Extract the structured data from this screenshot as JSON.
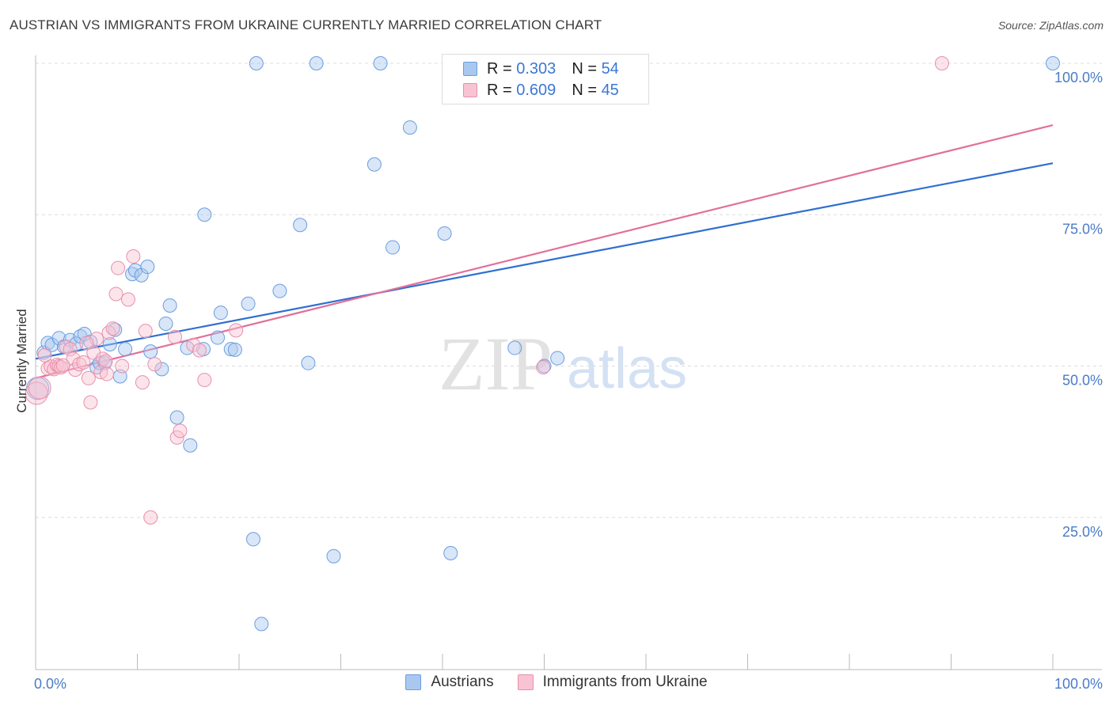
{
  "title": "AUSTRIAN VS IMMIGRANTS FROM UKRAINE CURRENTLY MARRIED CORRELATION CHART",
  "source": "Source: ZipAtlas.com",
  "watermark": {
    "zip": "ZIP",
    "atlas": "atlas"
  },
  "legend": {
    "r_label": "R =",
    "n_label": "N =",
    "rows": [
      {
        "r": "0.303",
        "n": "54",
        "color": "#a9c8f0",
        "border": "#6b9de0"
      },
      {
        "r": "0.609",
        "n": "45",
        "color": "#f8c3d3",
        "border": "#e890ab"
      }
    ]
  },
  "bottom_legend": [
    {
      "label": "Austrians",
      "color": "#a9c8f0",
      "border": "#6b9de0"
    },
    {
      "label": "Immigrants from Ukraine",
      "color": "#f8c3d3",
      "border": "#e890ab"
    }
  ],
  "chart_data": {
    "type": "scatter",
    "title": "AUSTRIAN VS IMMIGRANTS FROM UKRAINE CURRENTLY MARRIED CORRELATION CHART",
    "xlabel": "",
    "ylabel": "Currently Married",
    "xlim": [
      0,
      100
    ],
    "ylim": [
      0,
      102
    ],
    "x_tick_labels": [
      "0.0%",
      "100.0%"
    ],
    "y_ticks": [
      25,
      50,
      75,
      100
    ],
    "y_tick_labels": [
      "25.0%",
      "50.0%",
      "75.0%",
      "100.0%"
    ],
    "grid": true,
    "legend_position": "top-center",
    "series": [
      {
        "name": "Austrians",
        "color": "#6b9de0",
        "fill": "rgba(169,200,240,0.45)",
        "trend": {
          "x": [
            0,
            100
          ],
          "y": [
            51.2,
            83.5
          ],
          "color": "#2f6fd1"
        },
        "points": [
          [
            0.2,
            46.3
          ],
          [
            0.8,
            52.2
          ],
          [
            1.2,
            53.8
          ],
          [
            1.6,
            53.5
          ],
          [
            2.3,
            54.6
          ],
          [
            2.8,
            53.2
          ],
          [
            3.4,
            54.3
          ],
          [
            4.0,
            53.7
          ],
          [
            4.4,
            54.9
          ],
          [
            4.8,
            55.3
          ],
          [
            5.4,
            54.0
          ],
          [
            6.0,
            49.8
          ],
          [
            6.3,
            50.5
          ],
          [
            6.8,
            50.5
          ],
          [
            7.3,
            53.6
          ],
          [
            7.8,
            56.0
          ],
          [
            8.3,
            48.3
          ],
          [
            8.8,
            52.8
          ],
          [
            9.5,
            65.2
          ],
          [
            9.8,
            65.8
          ],
          [
            10.4,
            65.0
          ],
          [
            11.0,
            66.4
          ],
          [
            11.3,
            52.4
          ],
          [
            12.4,
            49.5
          ],
          [
            12.8,
            57.0
          ],
          [
            13.2,
            60.0
          ],
          [
            13.9,
            41.5
          ],
          [
            14.9,
            53.0
          ],
          [
            15.2,
            36.9
          ],
          [
            16.5,
            52.8
          ],
          [
            16.6,
            75.0
          ],
          [
            17.9,
            54.7
          ],
          [
            18.2,
            58.8
          ],
          [
            19.2,
            52.8
          ],
          [
            19.6,
            52.7
          ],
          [
            20.9,
            60.3
          ],
          [
            21.4,
            21.4
          ],
          [
            21.7,
            100.0
          ],
          [
            22.2,
            7.4
          ],
          [
            24.0,
            62.4
          ],
          [
            26.0,
            73.3
          ],
          [
            26.8,
            50.5
          ],
          [
            27.6,
            100.0
          ],
          [
            29.3,
            18.6
          ],
          [
            33.3,
            83.3
          ],
          [
            33.9,
            100.0
          ],
          [
            35.1,
            69.6
          ],
          [
            36.8,
            89.4
          ],
          [
            40.2,
            71.9
          ],
          [
            40.8,
            19.1
          ],
          [
            47.1,
            53.0
          ],
          [
            50.0,
            50.0
          ],
          [
            51.3,
            51.3
          ],
          [
            100.0,
            100.0
          ]
        ]
      },
      {
        "name": "Immigrants from Ukraine",
        "color": "#e890ab",
        "fill": "rgba(248,195,211,0.45)",
        "trend": {
          "x": [
            0,
            100
          ],
          "y": [
            48.0,
            89.8
          ],
          "color": "#e2709a"
        },
        "points": [
          [
            0.1,
            45.5
          ],
          [
            0.4,
            46.4
          ],
          [
            0.9,
            51.8
          ],
          [
            1.2,
            49.6
          ],
          [
            1.5,
            49.9
          ],
          [
            1.8,
            49.5
          ],
          [
            2.1,
            50.2
          ],
          [
            2.3,
            50.0
          ],
          [
            2.5,
            49.8
          ],
          [
            2.7,
            50.1
          ],
          [
            3.0,
            53.2
          ],
          [
            3.4,
            52.8
          ],
          [
            3.7,
            51.2
          ],
          [
            3.9,
            49.4
          ],
          [
            4.3,
            50.3
          ],
          [
            4.7,
            50.6
          ],
          [
            5.2,
            48.0
          ],
          [
            5.4,
            44.0
          ],
          [
            5.7,
            52.2
          ],
          [
            6.0,
            54.5
          ],
          [
            6.4,
            49.0
          ],
          [
            6.6,
            51.2
          ],
          [
            6.9,
            50.8
          ],
          [
            7.2,
            55.5
          ],
          [
            7.6,
            56.2
          ],
          [
            7.9,
            61.9
          ],
          [
            8.1,
            66.2
          ],
          [
            8.5,
            50.0
          ],
          [
            9.1,
            61.0
          ],
          [
            9.6,
            68.1
          ],
          [
            10.5,
            47.3
          ],
          [
            10.8,
            55.8
          ],
          [
            11.3,
            25.0
          ],
          [
            11.7,
            50.3
          ],
          [
            13.7,
            54.8
          ],
          [
            13.9,
            38.2
          ],
          [
            14.2,
            39.3
          ],
          [
            15.5,
            53.5
          ],
          [
            16.1,
            52.6
          ],
          [
            16.6,
            47.7
          ],
          [
            19.7,
            55.9
          ],
          [
            49.9,
            49.8
          ],
          [
            89.1,
            100.0
          ],
          [
            7.0,
            48.7
          ],
          [
            5.0,
            53.8
          ]
        ]
      }
    ]
  }
}
